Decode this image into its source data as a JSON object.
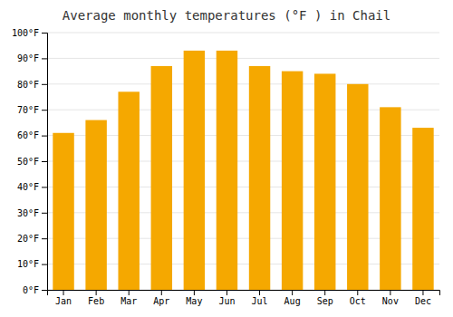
{
  "chart_data": {
    "type": "bar",
    "title": "Average monthly temperatures (°F ) in Chail",
    "categories": [
      "Jan",
      "Feb",
      "Mar",
      "Apr",
      "May",
      "Jun",
      "Jul",
      "Aug",
      "Sep",
      "Oct",
      "Nov",
      "Dec"
    ],
    "values": [
      61,
      66,
      77,
      87,
      93,
      93,
      87,
      85,
      84,
      80,
      71,
      63
    ],
    "color": "#F5A800",
    "ylim": [
      0,
      100
    ],
    "yticks": [
      {
        "value": 0,
        "label": "0°F"
      },
      {
        "value": 10,
        "label": "10°F"
      },
      {
        "value": 20,
        "label": "20°F"
      },
      {
        "value": 30,
        "label": "30°F"
      },
      {
        "value": 40,
        "label": "40°F"
      },
      {
        "value": 50,
        "label": "50°F"
      },
      {
        "value": 60,
        "label": "60°F"
      },
      {
        "value": 70,
        "label": "70°F"
      },
      {
        "value": 80,
        "label": "80°F"
      },
      {
        "value": 90,
        "label": "90°F"
      },
      {
        "value": 100,
        "label": "100°F"
      }
    ],
    "grid": true
  }
}
